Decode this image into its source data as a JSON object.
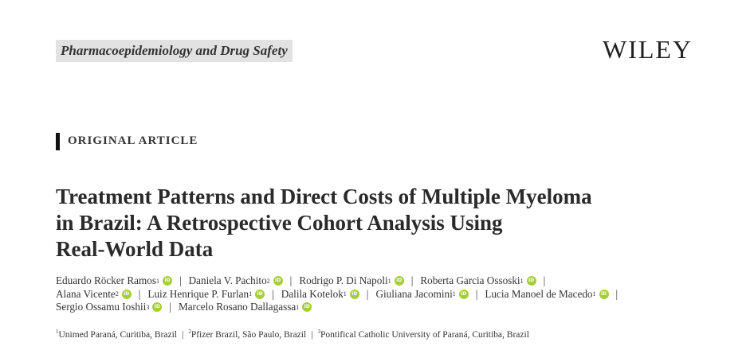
{
  "header": {
    "journal": "Pharmacoepidemiology and Drug Safety",
    "publisher": "WILEY"
  },
  "article_type": "ORIGINAL ARTICLE",
  "title_lines": [
    "Treatment Patterns and Direct Costs of Multiple Myeloma",
    "in Brazil: A Retrospective Cohort Analysis Using",
    "Real-World Data"
  ],
  "author_lines": [
    [
      {
        "name": "Eduardo Röcker Ramos",
        "aff": "1"
      },
      {
        "name": "Daniela V. Pachito",
        "aff": "2"
      },
      {
        "name": "Rodrigo P. Di Napoli",
        "aff": "1"
      },
      {
        "name": "Roberta Garcia Ossoski",
        "aff": "1"
      }
    ],
    [
      {
        "name": "Alana Vicente",
        "aff": "2"
      },
      {
        "name": "Luiz Henrique P. Furlan",
        "aff": "1"
      },
      {
        "name": "Dalila Kotelok",
        "aff": "1"
      },
      {
        "name": "Giuliana Jacomini",
        "aff": "1"
      },
      {
        "name": "Lucia Manoel de Macedo",
        "aff": "1"
      }
    ],
    [
      {
        "name": "Sergio Ossamu Ioshii",
        "aff": "3"
      },
      {
        "name": "Marcelo Rosano Dallagassa",
        "aff": "1"
      }
    ]
  ],
  "affiliations": [
    {
      "num": "1",
      "text": "Unimed Paraná, Curitiba, Brazil"
    },
    {
      "num": "2",
      "text": "Pfizer Brazil, São Paulo, Brazil"
    },
    {
      "num": "3",
      "text": "Pontifical Catholic University of Paraná, Curitiba, Brazil"
    }
  ]
}
